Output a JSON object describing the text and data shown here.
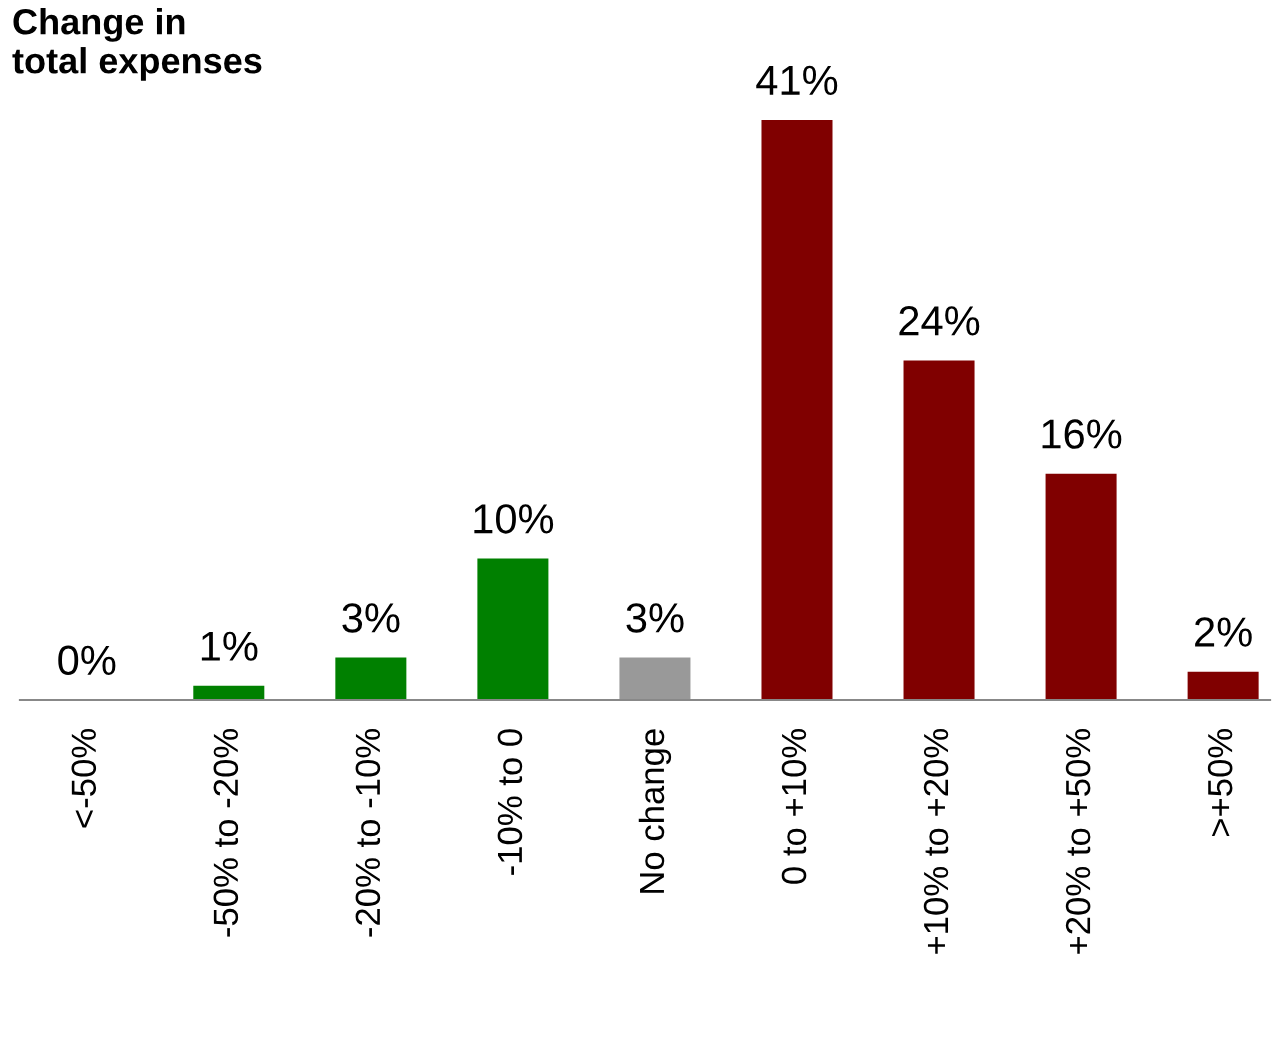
{
  "chart_data": {
    "type": "bar",
    "title": "Change in\ntotal expenses",
    "categories": [
      "<-50%",
      "-50% to -20%",
      "-20% to -10%",
      "-10% to 0",
      "No change",
      "0 to +10%",
      "+10% to +20%",
      "+20% to +50%",
      ">+50%"
    ],
    "values": [
      0,
      1,
      3,
      10,
      3,
      41,
      24,
      16,
      2
    ],
    "colors": [
      "#008000",
      "#008000",
      "#008000",
      "#008000",
      "#999999",
      "#800000",
      "#800000",
      "#800000",
      "#800000"
    ],
    "value_labels": [
      "0%",
      "1%",
      "3%",
      "10%",
      "3%",
      "41%",
      "24%",
      "16%",
      "2%"
    ],
    "grid": false,
    "legend": false
  }
}
